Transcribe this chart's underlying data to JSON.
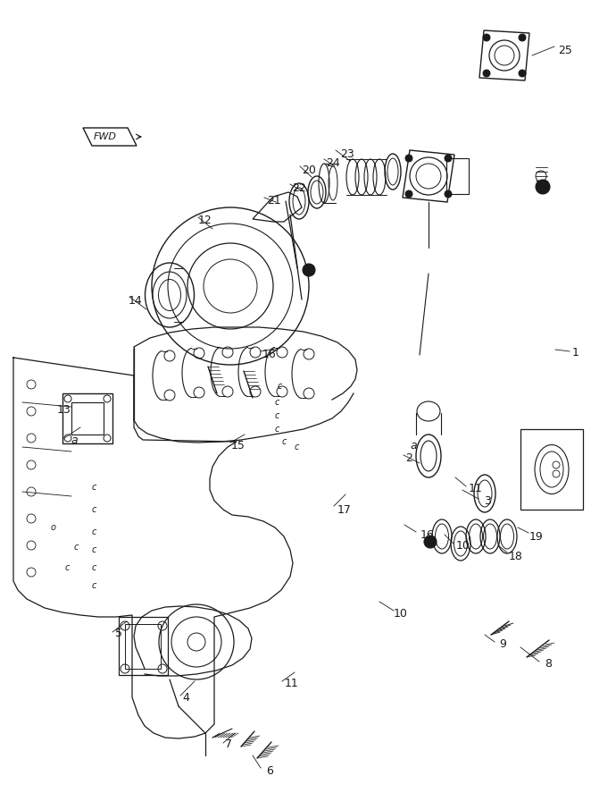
{
  "bg_color": "#ffffff",
  "line_color": "#1a1a1a",
  "fig_width": 6.9,
  "fig_height": 9.06,
  "dpi": 100,
  "part_labels": [
    [
      "1",
      645,
      394
    ],
    [
      "2",
      458,
      512
    ],
    [
      "3",
      546,
      560
    ],
    [
      "4",
      208,
      780
    ],
    [
      "5",
      133,
      709
    ],
    [
      "6",
      302,
      862
    ],
    [
      "7",
      256,
      833
    ],
    [
      "8",
      614,
      742
    ],
    [
      "9",
      563,
      720
    ],
    [
      "10",
      449,
      686
    ],
    [
      "10",
      519,
      611
    ],
    [
      "11",
      327,
      764
    ],
    [
      "11",
      533,
      547
    ],
    [
      "12",
      230,
      247
    ],
    [
      "13",
      72,
      459
    ],
    [
      "14",
      152,
      336
    ],
    [
      "15",
      267,
      499
    ],
    [
      "16",
      302,
      397
    ],
    [
      "16",
      479,
      598
    ],
    [
      "17",
      386,
      570
    ],
    [
      "18",
      578,
      622
    ],
    [
      "19",
      601,
      600
    ],
    [
      "20",
      346,
      190
    ],
    [
      "21",
      307,
      225
    ],
    [
      "22",
      335,
      210
    ],
    [
      "23",
      389,
      172
    ],
    [
      "24",
      373,
      182
    ],
    [
      "25",
      633,
      56
    ],
    [
      "a",
      83,
      493
    ],
    [
      "a",
      463,
      499
    ]
  ],
  "leader_lines": [
    [
      630,
      394,
      610,
      394
    ],
    [
      450,
      510,
      490,
      520
    ],
    [
      540,
      558,
      520,
      550
    ],
    [
      203,
      778,
      230,
      770
    ],
    [
      128,
      707,
      148,
      695
    ],
    [
      297,
      860,
      285,
      848
    ],
    [
      252,
      831,
      267,
      822
    ],
    [
      608,
      740,
      585,
      726
    ],
    [
      558,
      718,
      548,
      710
    ],
    [
      444,
      684,
      430,
      674
    ],
    [
      514,
      609,
      505,
      600
    ],
    [
      322,
      762,
      335,
      752
    ],
    [
      528,
      545,
      514,
      536
    ],
    [
      225,
      245,
      243,
      258
    ],
    [
      78,
      491,
      95,
      480
    ],
    [
      148,
      334,
      168,
      348
    ],
    [
      262,
      497,
      279,
      488
    ],
    [
      297,
      395,
      314,
      393
    ],
    [
      474,
      596,
      460,
      589
    ],
    [
      381,
      568,
      395,
      555
    ],
    [
      575,
      620,
      564,
      612
    ],
    [
      598,
      598,
      585,
      592
    ],
    [
      342,
      188,
      356,
      200
    ],
    [
      303,
      223,
      316,
      228
    ],
    [
      331,
      208,
      342,
      215
    ],
    [
      384,
      170,
      400,
      182
    ],
    [
      369,
      180,
      380,
      188
    ],
    [
      628,
      54,
      600,
      65
    ],
    [
      78,
      491,
      97,
      480
    ],
    [
      458,
      497,
      474,
      505
    ]
  ]
}
